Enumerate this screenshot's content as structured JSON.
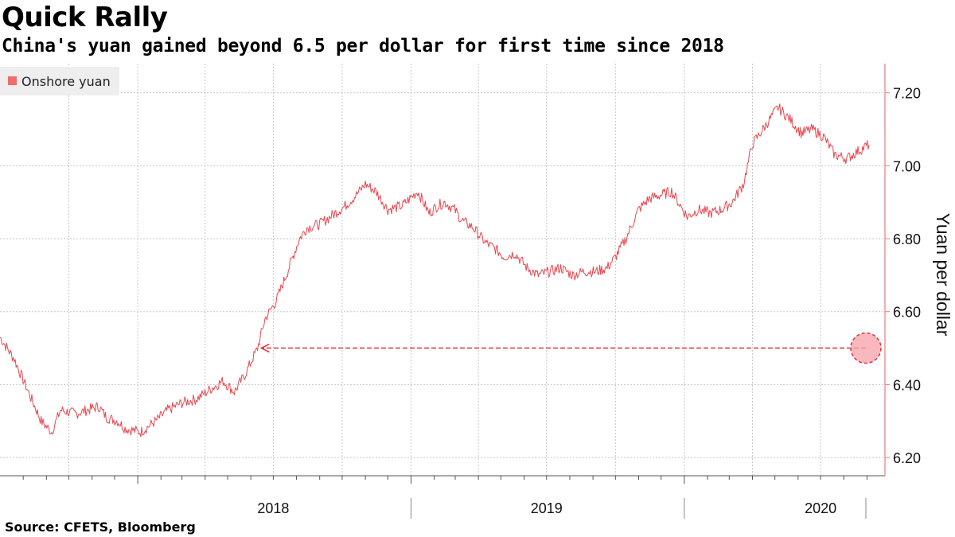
{
  "header": {
    "title": "Quick Rally",
    "subtitle": "China's yuan gained beyond 6.5 per dollar for first time since 2018"
  },
  "footer": {
    "source": "Source: CFETS, Bloomberg"
  },
  "colors": {
    "series": "#e8474f",
    "legend_swatch": "#f26b6b",
    "axis": "#f07a80",
    "grid": "#c8c8c8",
    "marker_fill": "#f6a6ae",
    "marker_stroke": "#e0303c"
  },
  "chart_data": {
    "type": "line",
    "title": "Quick Rally",
    "subtitle": "China's yuan gained beyond 6.5 per dollar for first time since 2018",
    "ylabel": "Yuan per dollar",
    "xlabel": "",
    "ylim": [
      6.15,
      7.28
    ],
    "yticks": [
      6.2,
      6.4,
      6.6,
      6.8,
      7.0,
      7.2
    ],
    "ytick_labels": [
      "6.20",
      "6.40",
      "6.60",
      "6.80",
      "7.00",
      "7.20"
    ],
    "xlim": [
      "2017-07-01",
      "2020-09-25"
    ],
    "year_labels": [
      {
        "label": "2018",
        "date": "2018-07-01"
      },
      {
        "label": "2019",
        "date": "2019-07-01"
      },
      {
        "label": "2020",
        "date": "2020-07-01"
      }
    ],
    "legend": {
      "entries": [
        "Onshore yuan"
      ],
      "position": "top-left"
    },
    "grid": true,
    "y_axis_side": "right",
    "series": [
      {
        "name": "Onshore yuan",
        "points": [
          [
            "2017-07-01",
            6.53
          ],
          [
            "2017-07-20",
            6.47
          ],
          [
            "2017-08-10",
            6.37
          ],
          [
            "2017-08-25",
            6.3
          ],
          [
            "2017-09-08",
            6.27
          ],
          [
            "2017-09-20",
            6.33
          ],
          [
            "2017-10-10",
            6.32
          ],
          [
            "2017-10-25",
            6.33
          ],
          [
            "2017-11-10",
            6.34
          ],
          [
            "2017-11-20",
            6.31
          ],
          [
            "2017-12-05",
            6.3
          ],
          [
            "2017-12-15",
            6.28
          ],
          [
            "2018-01-05",
            6.27
          ],
          [
            "2018-01-25",
            6.3
          ],
          [
            "2018-02-10",
            6.33
          ],
          [
            "2018-03-01",
            6.35
          ],
          [
            "2018-03-20",
            6.36
          ],
          [
            "2018-04-10",
            6.39
          ],
          [
            "2018-04-25",
            6.41
          ],
          [
            "2018-05-10",
            6.38
          ],
          [
            "2018-05-25",
            6.43
          ],
          [
            "2018-06-10",
            6.5
          ],
          [
            "2018-06-20",
            6.58
          ],
          [
            "2018-07-05",
            6.63
          ],
          [
            "2018-07-20",
            6.71
          ],
          [
            "2018-08-05",
            6.8
          ],
          [
            "2018-08-15",
            6.83
          ],
          [
            "2018-09-01",
            6.84
          ],
          [
            "2018-09-15",
            6.86
          ],
          [
            "2018-10-05",
            6.89
          ],
          [
            "2018-10-20",
            6.92
          ],
          [
            "2018-11-01",
            6.95
          ],
          [
            "2018-11-15",
            6.93
          ],
          [
            "2018-12-01",
            6.88
          ],
          [
            "2018-12-20",
            6.89
          ],
          [
            "2019-01-10",
            6.93
          ],
          [
            "2019-01-25",
            6.87
          ],
          [
            "2019-02-05",
            6.89
          ],
          [
            "2019-02-15",
            6.9
          ],
          [
            "2019-02-28",
            6.88
          ],
          [
            "2019-03-10",
            6.85
          ],
          [
            "2019-03-25",
            6.83
          ],
          [
            "2019-04-10",
            6.79
          ],
          [
            "2019-04-25",
            6.77
          ],
          [
            "2019-05-05",
            6.75
          ],
          [
            "2019-05-20",
            6.76
          ],
          [
            "2019-06-05",
            6.72
          ],
          [
            "2019-06-20",
            6.7
          ],
          [
            "2019-07-05",
            6.71
          ],
          [
            "2019-07-20",
            6.72
          ],
          [
            "2019-08-05",
            6.7
          ],
          [
            "2019-08-20",
            6.71
          ],
          [
            "2019-09-05",
            6.71
          ],
          [
            "2019-09-20",
            6.72
          ],
          [
            "2019-10-01",
            6.75
          ],
          [
            "2019-10-15",
            6.8
          ],
          [
            "2019-11-01",
            6.88
          ],
          [
            "2019-11-15",
            6.91
          ],
          [
            "2019-12-01",
            6.92
          ],
          [
            "2019-12-15",
            6.93
          ],
          [
            "2020-01-05",
            6.86
          ],
          [
            "2020-01-20",
            6.88
          ],
          [
            "2020-02-05",
            6.87
          ],
          [
            "2020-02-20",
            6.88
          ],
          [
            "2020-03-05",
            6.9
          ],
          [
            "2020-03-20",
            6.95
          ],
          [
            "2020-04-01",
            7.06
          ],
          [
            "2020-04-15",
            7.1
          ],
          [
            "2020-05-05",
            7.16
          ],
          [
            "2020-05-20",
            7.13
          ],
          [
            "2020-06-05",
            7.09
          ],
          [
            "2020-06-20",
            7.1
          ],
          [
            "2020-07-05",
            7.08
          ],
          [
            "2020-07-20",
            7.03
          ],
          [
            "2020-08-05",
            7.02
          ],
          [
            "2020-08-20",
            7.04
          ],
          [
            "2020-09-05",
            7.06
          ]
        ]
      }
    ],
    "annotation": {
      "type": "arrow",
      "y": 6.5,
      "from_date": "2020-09-25",
      "to_date": "2018-06-15",
      "marker": "circle"
    }
  }
}
